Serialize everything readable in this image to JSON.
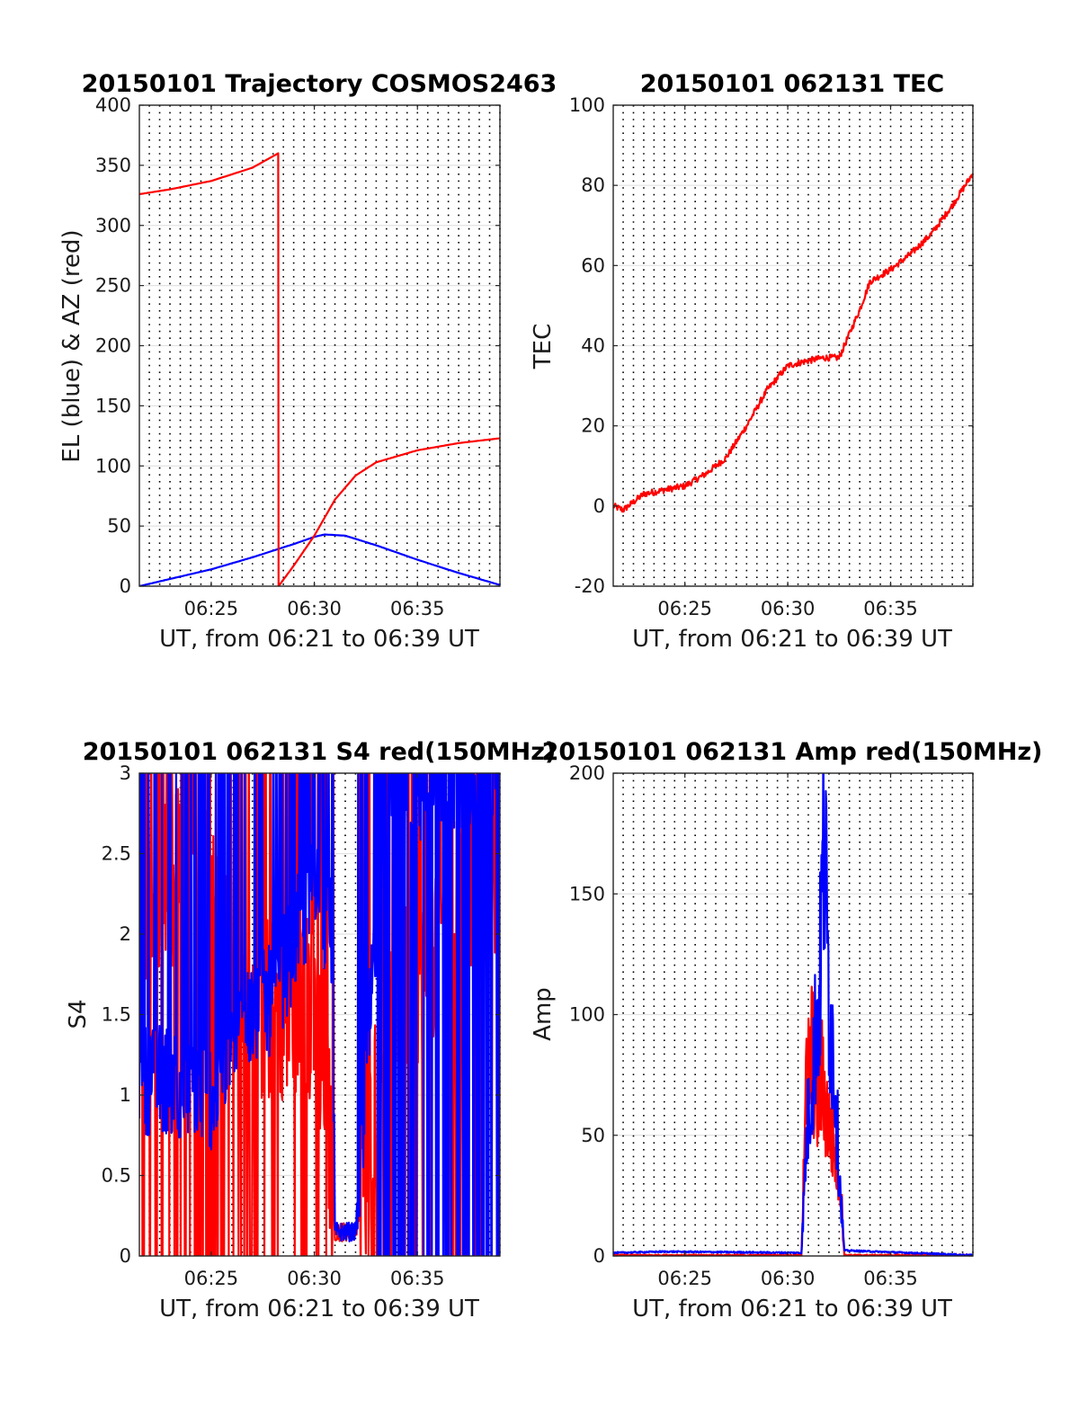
{
  "colors": {
    "el": "#0000ff",
    "az": "#ff0000",
    "s4_red": "#ff0000",
    "s4_blue": "#0000ff",
    "amp_red": "#ff0000",
    "amp_blue": "#0000ff",
    "tec": "#ff0000"
  },
  "chart_data": [
    {
      "type": "line",
      "title": "20150101 Trajectory COSMOS2463",
      "xlabel": "UT, from 06:21 to 06:39 UT",
      "ylabel": "EL (blue) & AZ (red)",
      "xlim": [
        "06:21:31",
        "06:39:00"
      ],
      "ylim": [
        0,
        400
      ],
      "xticks": [
        "06:25",
        "06:30",
        "06:35"
      ],
      "yticks": [
        "0",
        "50",
        "100",
        "150",
        "200",
        "250",
        "300",
        "350",
        "400"
      ],
      "grid": "dotted vertical every 30 s, light horizontal at y ticks",
      "series": [
        {
          "color": "blue",
          "x": [
            "06:21:31",
            "06:23:00",
            "06:25:00",
            "06:27:00",
            "06:29:00",
            "06:30:00",
            "06:30:30",
            "06:31:30",
            "06:33:00",
            "06:35:00",
            "06:37:00",
            "06:39:00"
          ],
          "values": [
            0,
            6,
            14,
            24,
            35,
            41,
            43,
            42,
            34,
            22,
            11,
            1
          ]
        },
        {
          "color": "red",
          "x": [
            "06:21:31",
            "06:23:00",
            "06:25:00",
            "06:27:00",
            "06:28:15",
            "06:28:16",
            "06:29:00",
            "06:30:00",
            "06:31:00",
            "06:32:00",
            "06:33:00",
            "06:35:00",
            "06:37:00",
            "06:39:00"
          ],
          "values": [
            326,
            330,
            337,
            348,
            360,
            0,
            17,
            42,
            72,
            92,
            103,
            113,
            119,
            123
          ]
        }
      ]
    },
    {
      "type": "line",
      "title": "20150101 062131 TEC",
      "xlabel": "UT, from 06:21 to 06:39 UT",
      "ylabel": "TEC",
      "xlim": [
        "06:21:31",
        "06:39:00"
      ],
      "ylim": [
        -20,
        100
      ],
      "xticks": [
        "06:25",
        "06:30",
        "06:35"
      ],
      "yticks": [
        "-20",
        "0",
        "20",
        "40",
        "60",
        "80",
        "100"
      ],
      "series": [
        {
          "color": "red",
          "x": [
            "06:21:31",
            "06:22:00",
            "06:23:00",
            "06:24:00",
            "06:25:00",
            "06:26:00",
            "06:27:00",
            "06:28:00",
            "06:29:00",
            "06:30:00",
            "06:30:45",
            "06:31:45",
            "06:32:30",
            "06:33:30",
            "06:34:00",
            "06:35:00",
            "06:36:00",
            "06:37:00",
            "06:38:00",
            "06:39:00"
          ],
          "values": [
            0,
            -1,
            3,
            4,
            5,
            8,
            12,
            20,
            29,
            35,
            36,
            37,
            37,
            49,
            56,
            59,
            63,
            68,
            75,
            83
          ]
        }
      ]
    },
    {
      "type": "line",
      "title": "20150101 062131 S4 red(150MHz)",
      "xlabel": "UT, from 06:21 to 06:39 UT",
      "ylabel": "S4",
      "xlim": [
        "06:21:31",
        "06:39:00"
      ],
      "ylim": [
        0,
        3
      ],
      "xticks": [
        "06:25",
        "06:30",
        "06:35"
      ],
      "yticks": [
        "0",
        "0.5",
        "1",
        "1.5",
        "2",
        "2.5",
        "3"
      ],
      "series": [
        {
          "color": "red",
          "x": [
            "06:21:31",
            "06:24:00",
            "06:27:00",
            "06:29:30",
            "06:30:30",
            "06:31:00",
            "06:32:00",
            "06:33:00",
            "06:34:00",
            "06:36:00",
            "06:39:00"
          ],
          "values": [
            2.0,
            2.5,
            1.5,
            1.6,
            1.2,
            0.15,
            0.15,
            1.0,
            1.5,
            2.0,
            2.5
          ]
        },
        {
          "color": "blue",
          "x": [
            "06:21:31",
            "06:23:00",
            "06:25:00",
            "06:26:00",
            "06:28:00",
            "06:30:00",
            "06:30:50",
            "06:31:00",
            "06:32:00",
            "06:33:00",
            "06:34:00",
            "06:36:00",
            "06:39:00"
          ],
          "values": [
            1.1,
            1.1,
            1.0,
            1.4,
            1.6,
            2.3,
            2.0,
            0.15,
            0.15,
            2.0,
            2.8,
            3.0,
            3.0
          ]
        }
      ]
    },
    {
      "type": "line",
      "title": "20150101 062131 Amp red(150MHz)",
      "xlabel": "UT, from 06:21 to 06:39 UT",
      "ylabel": "Amp",
      "xlim": [
        "06:21:31",
        "06:39:00"
      ],
      "ylim": [
        0,
        200
      ],
      "xticks": [
        "06:25",
        "06:30",
        "06:35"
      ],
      "yticks": [
        "0",
        "50",
        "100",
        "150",
        "200"
      ],
      "series": [
        {
          "color": "red",
          "x": [
            "06:21:31",
            "06:30:40",
            "06:30:50",
            "06:31:10",
            "06:31:25",
            "06:31:40",
            "06:32:00",
            "06:32:20",
            "06:32:35",
            "06:32:45",
            "06:39:00"
          ],
          "values": [
            0,
            0,
            70,
            95,
            70,
            80,
            60,
            45,
            30,
            0,
            0
          ]
        },
        {
          "color": "blue",
          "x": [
            "06:21:31",
            "06:24:00",
            "06:30:40",
            "06:30:55",
            "06:31:15",
            "06:31:35",
            "06:31:45",
            "06:32:00",
            "06:32:15",
            "06:32:30",
            "06:32:45",
            "06:39:00"
          ],
          "values": [
            1,
            1.5,
            1,
            55,
            90,
            130,
            195,
            120,
            90,
            40,
            2,
            0
          ]
        }
      ]
    }
  ]
}
